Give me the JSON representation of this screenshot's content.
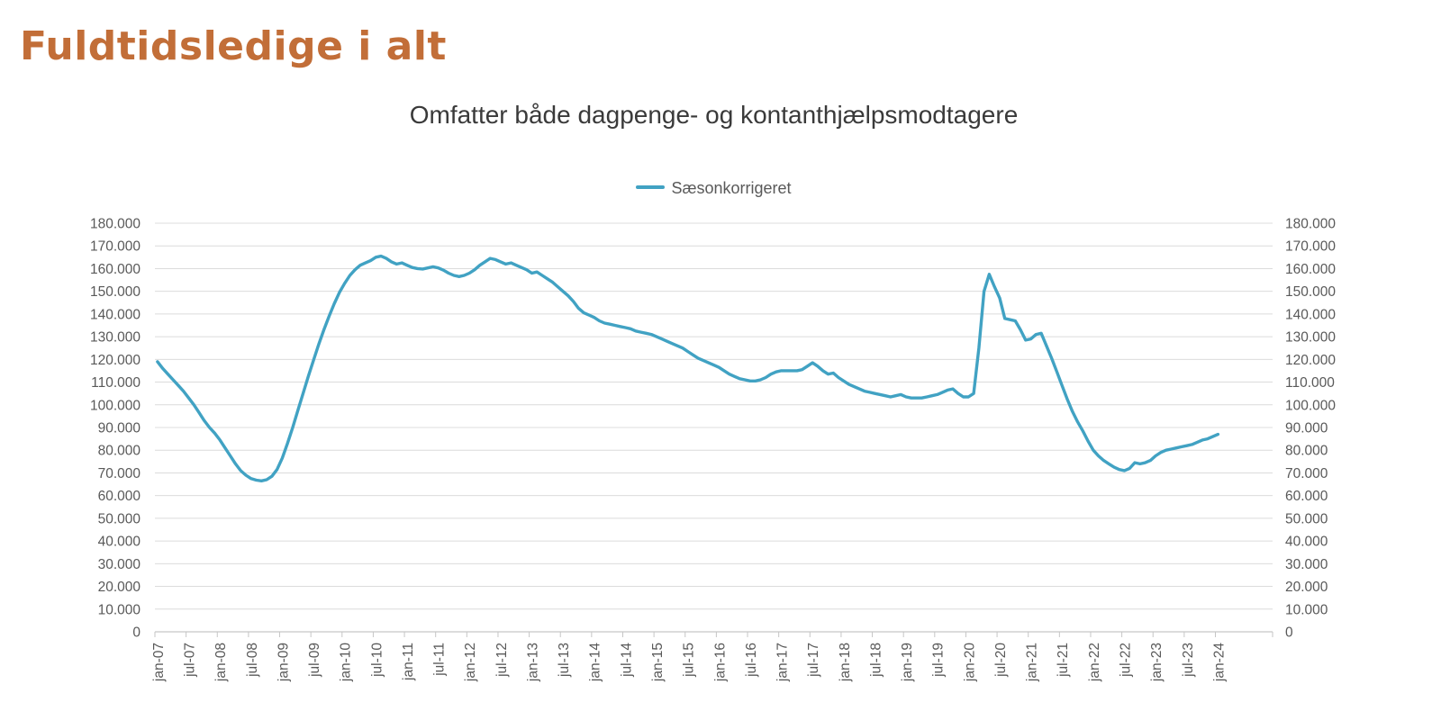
{
  "page": {
    "title": "Fuldtidsledige i alt"
  },
  "chart": {
    "subtitle": "Omfatter både dagpenge- og kontanthjælpsmodtagere",
    "legend": {
      "label": "Sæsonkorrigeret"
    }
  },
  "colors": {
    "title": "#c26e38",
    "subtitle": "#3a3a3a",
    "axis_text": "#595959",
    "gridline": "#dcdcdc",
    "axis_line": "#c6c6c6",
    "series": "#41a2c3"
  },
  "chart_data": {
    "type": "line",
    "title": "Omfatter både dagpenge- og kontanthjælpsmodtagere",
    "legend_position": "top-center",
    "grid": true,
    "x_unit": "month",
    "x_range": [
      "jan-07",
      "jan-24"
    ],
    "x_tick_interval_months": 6,
    "x_tick_labels": [
      "jan-07",
      "jul-07",
      "jan-08",
      "jul-08",
      "jan-09",
      "jul-09",
      "jan-10",
      "jul-10",
      "jan-11",
      "jul-11",
      "jan-12",
      "jul-12",
      "jan-13",
      "jul-13",
      "jan-14",
      "jul-14",
      "jan-15",
      "jul-15",
      "jan-16",
      "jul-16",
      "jan-17",
      "jul-17",
      "jan-18",
      "jul-18",
      "jan-19",
      "jul-19",
      "jan-20",
      "jul-20",
      "jan-21",
      "jul-21",
      "jan-22",
      "jul-22",
      "jan-23",
      "jul-23",
      "jan-24"
    ],
    "ylim": [
      0,
      180000
    ],
    "y_tick_step": 10000,
    "y_tick_labels": [
      "0",
      "10.000",
      "20.000",
      "30.000",
      "40.000",
      "50.000",
      "60.000",
      "70.000",
      "80.000",
      "90.000",
      "100.000",
      "110.000",
      "120.000",
      "130.000",
      "140.000",
      "150.000",
      "160.000",
      "170.000",
      "180.000"
    ],
    "y_axes": "both",
    "series": [
      {
        "name": "Sæsonkorrigeret",
        "color": "#41a2c3",
        "monthly_from": "jan-07",
        "values": [
          119000,
          116000,
          113500,
          111000,
          108500,
          106000,
          103000,
          100000,
          96500,
          93000,
          90000,
          87500,
          84500,
          81000,
          77500,
          74000,
          71000,
          69000,
          67500,
          66800,
          66500,
          67000,
          68500,
          71500,
          76500,
          83000,
          90000,
          97500,
          105000,
          112500,
          119500,
          126500,
          133000,
          139000,
          144500,
          149500,
          153500,
          157000,
          159500,
          161500,
          162500,
          163500,
          165000,
          165500,
          164500,
          163000,
          162000,
          162500,
          161500,
          160500,
          160000,
          159800,
          160300,
          160800,
          160300,
          159300,
          158000,
          157000,
          156500,
          157000,
          158000,
          159500,
          161500,
          163000,
          164500,
          164000,
          163000,
          162000,
          162500,
          161500,
          160500,
          159500,
          158000,
          158500,
          157000,
          155500,
          154000,
          152000,
          150000,
          148000,
          145500,
          142500,
          140500,
          139500,
          138500,
          137000,
          136000,
          135500,
          135000,
          134500,
          134000,
          133500,
          132500,
          132000,
          131500,
          131000,
          130000,
          129000,
          128000,
          127000,
          126000,
          125000,
          123500,
          122000,
          120500,
          119500,
          118500,
          117500,
          116500,
          115000,
          113500,
          112500,
          111500,
          111000,
          110500,
          110500,
          111000,
          112000,
          113500,
          114500,
          115000,
          115000,
          115000,
          115000,
          115500,
          117000,
          118500,
          117000,
          115000,
          113500,
          114000,
          112000,
          110500,
          109000,
          108000,
          107000,
          106000,
          105500,
          105000,
          104500,
          104000,
          103500,
          104000,
          104500,
          103500,
          103000,
          103000,
          103000,
          103500,
          104000,
          104500,
          105500,
          106500,
          107000,
          105000,
          103500,
          103500,
          105000,
          125000,
          150000,
          157500,
          152000,
          147000,
          138000,
          137500,
          137000,
          133000,
          128500,
          129000,
          131000,
          131500,
          126000,
          120500,
          114500,
          108500,
          102500,
          97000,
          92500,
          88500,
          84000,
          80000,
          77500,
          75500,
          74000,
          72500,
          71500,
          71000,
          72000,
          74500,
          74000,
          74500,
          75500,
          77500,
          79000,
          80000,
          80500,
          81000,
          81500,
          82000,
          82500,
          83500,
          84500,
          85000,
          86000,
          87000
        ]
      }
    ]
  }
}
